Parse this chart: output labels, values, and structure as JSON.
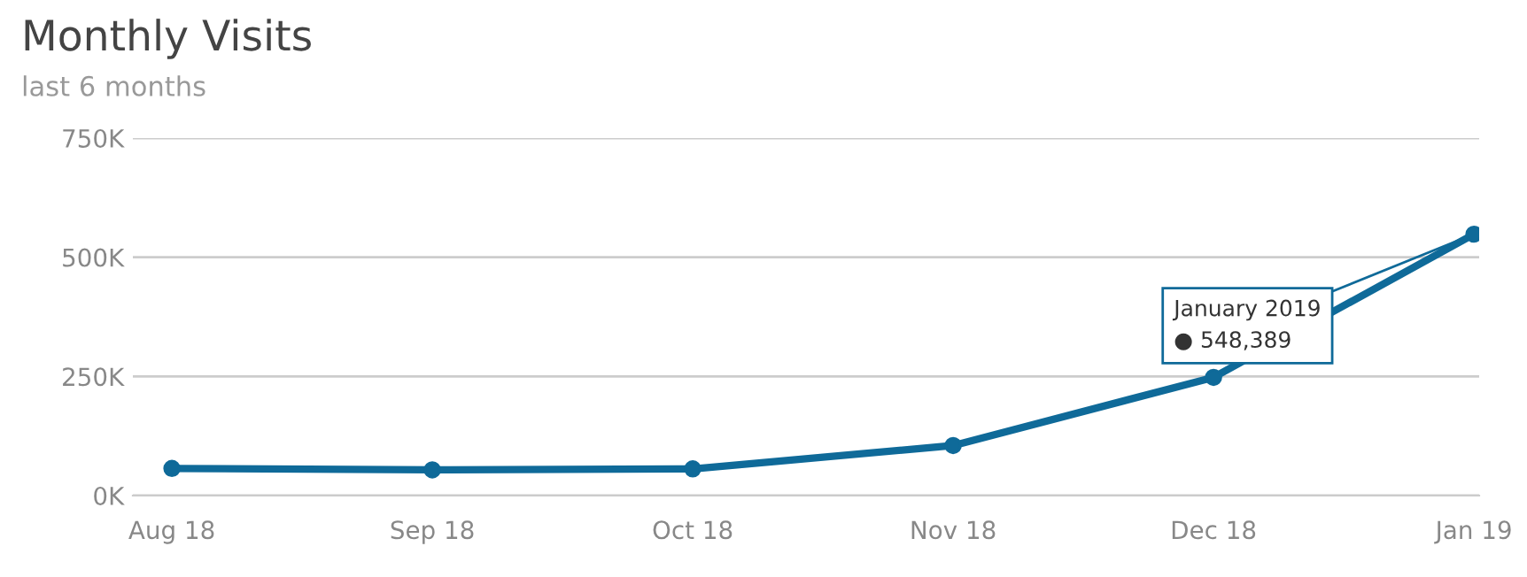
{
  "chart_data": {
    "type": "line",
    "title": "Monthly Visits",
    "subtitle": "last 6 months",
    "categories": [
      "Aug 18",
      "Sep 18",
      "Oct 18",
      "Nov 18",
      "Dec 18",
      "Jan 19"
    ],
    "series": [
      {
        "color": "#0f6a99",
        "values": [
          57000,
          54000,
          56000,
          105000,
          248000,
          548389
        ]
      }
    ],
    "annotations": [
      {
        "text": "January 2019\n● 548,389",
        "x": "Jan 19",
        "y": 548389
      }
    ],
    "ylim": [
      0,
      750000
    ],
    "yticks": [
      {
        "value": 0,
        "label": "0K"
      },
      {
        "value": 250000,
        "label": "250K"
      },
      {
        "value": 500000,
        "label": "500K"
      },
      {
        "value": 750000,
        "label": "750K"
      }
    ],
    "grid": "y",
    "marker": "circle",
    "line_style": "solid",
    "legend": false
  }
}
